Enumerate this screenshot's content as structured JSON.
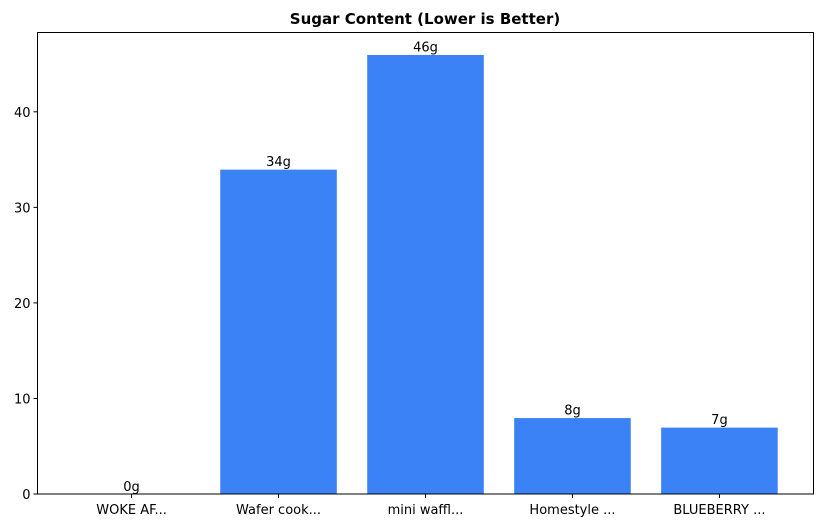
{
  "chart_data": {
    "type": "bar",
    "title": "Sugar Content (Lower is Better)",
    "xlabel": "",
    "ylabel": "",
    "categories": [
      "WOKE AF...",
      "Wafer cook...",
      "mini waffl...",
      "Homestyle ...",
      "BLUEBERRY ..."
    ],
    "values": [
      0,
      34,
      46,
      8,
      7
    ],
    "data_labels": [
      "0g",
      "34g",
      "46g",
      "8g",
      "7g"
    ],
    "ylim": [
      0,
      48.3
    ],
    "yticks": [
      0,
      10,
      20,
      30,
      40
    ],
    "grid": false,
    "bar_color": "#3b82f6"
  }
}
